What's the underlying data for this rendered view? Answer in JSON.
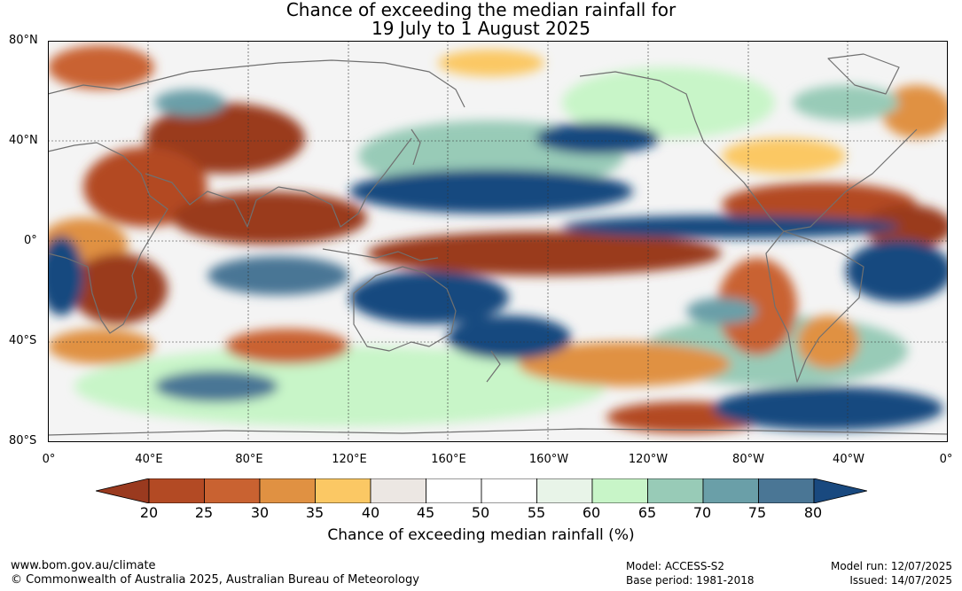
{
  "title": {
    "line1": "Chance of exceeding the median rainfall for",
    "line2": "19 July to 1 August 2025"
  },
  "lat_labels": [
    "80°N",
    "40°N",
    "0°",
    "40°S",
    "80°S"
  ],
  "lon_labels": [
    "0°",
    "40°E",
    "80°E",
    "120°E",
    "160°E",
    "160°W",
    "120°W",
    "80°W",
    "40°W",
    "0°"
  ],
  "colorbar": {
    "ticks": [
      "20",
      "25",
      "30",
      "35",
      "40",
      "45",
      "50",
      "55",
      "60",
      "65",
      "70",
      "75",
      "80"
    ],
    "colors": [
      "#9a3a1f",
      "#b34a24",
      "#c96231",
      "#e09142",
      "#fbc864",
      "#ece7e3",
      "#ffffff",
      "#ffffff",
      "#e8f4e8",
      "#c8f5c8",
      "#98cbb7",
      "#6a9fa8",
      "#4a7695",
      "#19497f"
    ],
    "label": "Chance of exceeding median rainfall (%)"
  },
  "footer": {
    "url": "www.bom.gov.au/climate",
    "copyright": "© Commonwealth of Australia 2025, Australian Bureau of Meteorology",
    "model": "Model: ACCESS-S2",
    "base_period": "Base period: 1981-2018",
    "model_run": "Model run: 12/07/2025",
    "issued": "Issued: 14/07/2025"
  }
}
